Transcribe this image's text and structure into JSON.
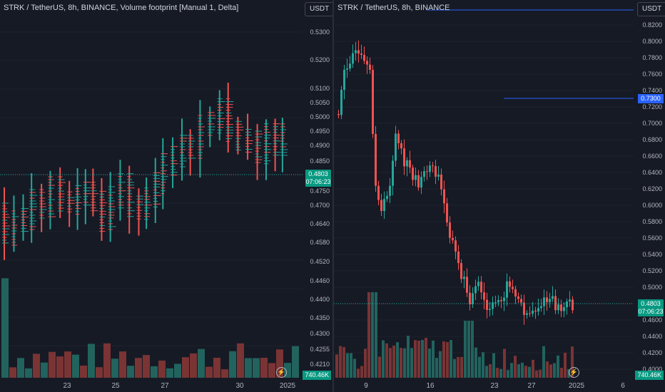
{
  "left": {
    "title": "STRK / TetherUS, 8h, BINANCE, Volume footprint [Manual 1, Delta]",
    "unit": "USDT",
    "yticks": [
      "0.5300",
      "0.5200",
      "0.5100",
      "0.5050",
      "0.5000",
      "0.4950",
      "0.4900",
      "0.4850",
      "0.4803",
      "0.4750",
      "0.4700",
      "0.4640",
      "0.4580",
      "0.4520",
      "0.4460",
      "0.4400",
      "0.4350",
      "0.4300",
      "0.4255",
      "0.4210"
    ],
    "price_label": "0.4803",
    "countdown": "07:06:23",
    "volume_label": "740.46K",
    "xticks": [
      "23",
      "25",
      "27",
      "30",
      "2025"
    ]
  },
  "right": {
    "title": "STRK / TetherUS, 8h, BINANCE",
    "unit": "USDT",
    "yticks": [
      "0.8200",
      "0.8000",
      "0.7800",
      "0.7600",
      "0.7400",
      "0.7200",
      "0.7000",
      "0.6800",
      "0.6600",
      "0.6400",
      "0.6200",
      "0.6000",
      "0.5800",
      "0.5600",
      "0.5400",
      "0.5200",
      "0.5000",
      "0.4800",
      "0.4600",
      "0.4400",
      "0.4200",
      "0.4000"
    ],
    "alert_label": "0.7300",
    "price_label": "0.4803",
    "countdown": "07:06:23",
    "volume_label": "740.46K",
    "xticks": [
      "9",
      "16",
      "23",
      "27",
      "2025",
      "6"
    ]
  },
  "colors": {
    "up": "#26a69a",
    "down": "#ef5350",
    "alert": "#2962ff",
    "bg": "#161a25"
  },
  "icons": {
    "alert_bolt": "lightning-icon"
  }
}
